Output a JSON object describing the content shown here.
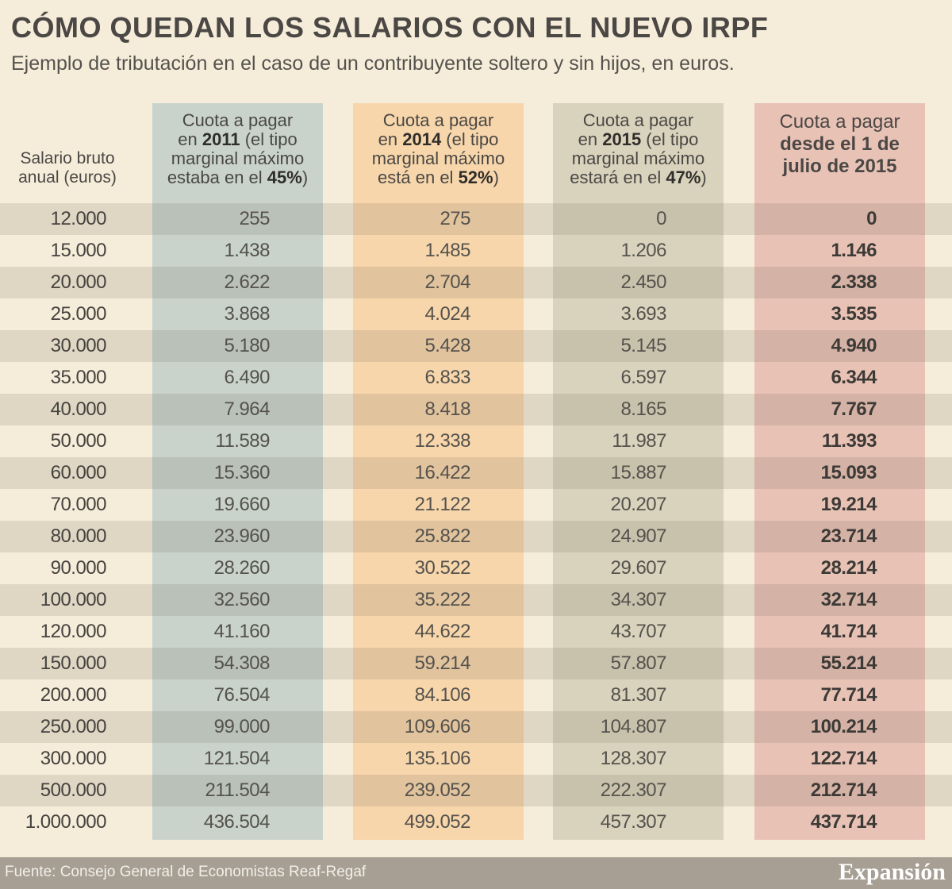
{
  "title": "CÓMO QUEDAN LOS SALARIOS CON EL NUEVO IRPF",
  "subtitle": "Ejemplo de tributación en el caso de un contribuyente soltero y sin hijos, en euros.",
  "headers": {
    "salary": [
      "Salario bruto",
      "anual (euros)"
    ],
    "col2011": {
      "lines": [
        "Cuota a pagar",
        "en 2011 (el tipo",
        "marginal máximo",
        "estaba en el "
      ],
      "bold": [
        null,
        "2011",
        null,
        "45%"
      ],
      "suffix": ")"
    },
    "col2014": {
      "lines": [
        "Cuota a pagar",
        "en 2014 (el tipo",
        "marginal máximo",
        "está en el "
      ],
      "bold": [
        null,
        "2014",
        null,
        "52%"
      ],
      "suffix": ")"
    },
    "col2015": {
      "lines": [
        "Cuota a pagar",
        "en 2015 (el tipo",
        "marginal máximo",
        "estará en el "
      ],
      "bold": [
        null,
        "2015",
        null,
        "47%"
      ],
      "suffix": ")"
    },
    "colJul2015": [
      "Cuota a pagar",
      "desde el 1 de",
      "julio de 2015"
    ]
  },
  "column_colors": {
    "col2011": "#c9d3cc",
    "col2014": "#f7d6ab",
    "col2015": "#d9d3bd",
    "colJul2015": "#e9c2b6"
  },
  "chart_data": {
    "type": "table",
    "title": "CÓMO QUEDAN LOS SALARIOS CON EL NUEVO IRPF",
    "subtitle": "Ejemplo de tributación en el caso de un contribuyente soltero y sin hijos, en euros.",
    "columns": [
      "Salario bruto anual (euros)",
      "Cuota a pagar en 2011 (el tipo marginal máximo estaba en el 45%)",
      "Cuota a pagar en 2014 (el tipo marginal máximo está en el 52%)",
      "Cuota a pagar en 2015 (el tipo marginal máximo estará en el 47%)",
      "Cuota a pagar desde el 1 de julio de 2015"
    ],
    "rows": [
      [
        "12.000",
        "255",
        "275",
        "0",
        "0"
      ],
      [
        "15.000",
        "1.438",
        "1.485",
        "1.206",
        "1.146"
      ],
      [
        "20.000",
        "2.622",
        "2.704",
        "2.450",
        "2.338"
      ],
      [
        "25.000",
        "3.868",
        "4.024",
        "3.693",
        "3.535"
      ],
      [
        "30.000",
        "5.180",
        "5.428",
        "5.145",
        "4.940"
      ],
      [
        "35.000",
        "6.490",
        "6.833",
        "6.597",
        "6.344"
      ],
      [
        "40.000",
        "7.964",
        "8.418",
        "8.165",
        "7.767"
      ],
      [
        "50.000",
        "11.589",
        "12.338",
        "11.987",
        "11.393"
      ],
      [
        "60.000",
        "15.360",
        "16.422",
        "15.887",
        "15.093"
      ],
      [
        "70.000",
        "19.660",
        "21.122",
        "20.207",
        "19.214"
      ],
      [
        "80.000",
        "23.960",
        "25.822",
        "24.907",
        "23.714"
      ],
      [
        "90.000",
        "28.260",
        "30.522",
        "29.607",
        "28.214"
      ],
      [
        "100.000",
        "32.560",
        "35.222",
        "34.307",
        "32.714"
      ],
      [
        "120.000",
        "41.160",
        "44.622",
        "43.707",
        "41.714"
      ],
      [
        "150.000",
        "54.308",
        "59.214",
        "57.807",
        "55.214"
      ],
      [
        "200.000",
        "76.504",
        "84.106",
        "81.307",
        "77.714"
      ],
      [
        "250.000",
        "99.000",
        "109.606",
        "104.807",
        "100.214"
      ],
      [
        "300.000",
        "121.504",
        "135.106",
        "128.307",
        "122.714"
      ],
      [
        "500.000",
        "211.504",
        "239.052",
        "222.307",
        "212.714"
      ],
      [
        "1.000.000",
        "436.504",
        "499.052",
        "457.307",
        "437.714"
      ]
    ]
  },
  "footer": {
    "source": "Fuente: Consejo General de Economistas Reaf-Regaf",
    "logo": "Expansión"
  }
}
